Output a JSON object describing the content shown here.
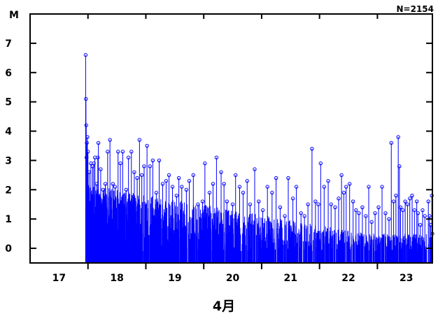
{
  "chart_data": {
    "type": "line",
    "title": "",
    "count_label": "N=2154",
    "ylabel": "M",
    "xlabel": "4月",
    "x_tick_labels": [
      "17",
      "18",
      "19",
      "20",
      "21",
      "22",
      "23"
    ],
    "y_tick_labels": [
      "0",
      "1",
      "2",
      "3",
      "4",
      "5",
      "6",
      "7"
    ],
    "xlim": [
      16.5,
      23.45
    ],
    "ylim": [
      -0.5,
      8.0
    ],
    "baseline": -0.5,
    "grid": false,
    "series_color": "#0000ff",
    "series": [
      {
        "name": "",
        "points": [
          [
            17.46,
            6.6
          ],
          [
            17.465,
            5.1
          ],
          [
            17.47,
            4.2
          ],
          [
            17.475,
            3.1
          ],
          [
            17.48,
            3.6
          ],
          [
            17.49,
            3.8
          ],
          [
            17.5,
            3.3
          ],
          [
            17.52,
            2.6
          ],
          [
            17.55,
            2.9
          ],
          [
            17.58,
            2.8
          ],
          [
            17.6,
            2.9
          ],
          [
            17.62,
            3.1
          ],
          [
            17.65,
            2.2
          ],
          [
            17.67,
            3.1
          ],
          [
            17.68,
            3.6
          ],
          [
            17.72,
            2.7
          ],
          [
            17.76,
            2.0
          ],
          [
            17.8,
            2.2
          ],
          [
            17.84,
            3.3
          ],
          [
            17.88,
            3.7
          ],
          [
            17.93,
            2.2
          ],
          [
            17.97,
            2.1
          ],
          [
            18.02,
            3.3
          ],
          [
            18.06,
            2.9
          ],
          [
            18.1,
            3.3
          ],
          [
            18.16,
            2.0
          ],
          [
            18.2,
            3.1
          ],
          [
            18.25,
            3.3
          ],
          [
            18.3,
            2.6
          ],
          [
            18.35,
            2.4
          ],
          [
            18.39,
            3.7
          ],
          [
            18.43,
            2.5
          ],
          [
            18.47,
            2.8
          ],
          [
            18.52,
            3.5
          ],
          [
            18.57,
            2.8
          ],
          [
            18.62,
            3.0
          ],
          [
            18.68,
            1.9
          ],
          [
            18.73,
            3.0
          ],
          [
            18.79,
            2.2
          ],
          [
            18.85,
            2.3
          ],
          [
            18.9,
            2.5
          ],
          [
            18.96,
            2.1
          ],
          [
            19.03,
            1.8
          ],
          [
            19.07,
            2.4
          ],
          [
            19.12,
            2.1
          ],
          [
            19.2,
            2.0
          ],
          [
            19.25,
            2.3
          ],
          [
            19.32,
            2.5
          ],
          [
            19.4,
            1.5
          ],
          [
            19.48,
            1.6
          ],
          [
            19.52,
            2.9
          ],
          [
            19.6,
            1.9
          ],
          [
            19.66,
            2.2
          ],
          [
            19.72,
            3.1
          ],
          [
            19.8,
            2.6
          ],
          [
            19.85,
            2.2
          ],
          [
            19.9,
            1.6
          ],
          [
            20.0,
            1.5
          ],
          [
            20.05,
            2.5
          ],
          [
            20.12,
            2.1
          ],
          [
            20.18,
            1.9
          ],
          [
            20.25,
            2.3
          ],
          [
            20.3,
            1.5
          ],
          [
            20.38,
            2.7
          ],
          [
            20.45,
            1.6
          ],
          [
            20.52,
            1.3
          ],
          [
            20.6,
            2.1
          ],
          [
            20.68,
            1.9
          ],
          [
            20.75,
            2.4
          ],
          [
            20.82,
            1.4
          ],
          [
            20.9,
            1.1
          ],
          [
            20.96,
            2.4
          ],
          [
            21.04,
            1.7
          ],
          [
            21.1,
            2.1
          ],
          [
            21.18,
            1.2
          ],
          [
            21.24,
            1.1
          ],
          [
            21.3,
            1.5
          ],
          [
            21.37,
            3.4
          ],
          [
            21.43,
            1.6
          ],
          [
            21.48,
            1.5
          ],
          [
            21.52,
            2.9
          ],
          [
            21.58,
            2.1
          ],
          [
            21.65,
            2.3
          ],
          [
            21.7,
            1.5
          ],
          [
            21.77,
            1.4
          ],
          [
            21.83,
            1.7
          ],
          [
            21.88,
            2.5
          ],
          [
            21.92,
            1.9
          ],
          [
            21.96,
            2.1
          ],
          [
            22.02,
            2.2
          ],
          [
            22.08,
            1.6
          ],
          [
            22.13,
            1.3
          ],
          [
            22.18,
            1.2
          ],
          [
            22.24,
            1.4
          ],
          [
            22.3,
            1.1
          ],
          [
            22.35,
            2.1
          ],
          [
            22.4,
            0.9
          ],
          [
            22.46,
            1.2
          ],
          [
            22.52,
            1.4
          ],
          [
            22.58,
            2.1
          ],
          [
            22.64,
            1.2
          ],
          [
            22.7,
            1.0
          ],
          [
            22.74,
            3.6
          ],
          [
            22.78,
            1.6
          ],
          [
            22.82,
            1.8
          ],
          [
            22.86,
            3.8
          ],
          [
            22.88,
            2.8
          ],
          [
            22.9,
            1.4
          ],
          [
            22.94,
            1.3
          ],
          [
            22.98,
            1.6
          ],
          [
            23.02,
            1.5
          ],
          [
            23.06,
            1.7
          ],
          [
            23.1,
            1.8
          ],
          [
            23.14,
            1.3
          ],
          [
            23.18,
            1.6
          ],
          [
            23.2,
            1.2
          ],
          [
            23.24,
            0.8
          ],
          [
            23.28,
            1.3
          ],
          [
            23.32,
            1.1
          ],
          [
            23.38,
            1.6
          ],
          [
            23.4,
            1.1
          ],
          [
            23.42,
            0.8
          ],
          [
            23.44,
            1.8
          ],
          [
            23.45,
            0.5
          ]
        ]
      }
    ]
  }
}
